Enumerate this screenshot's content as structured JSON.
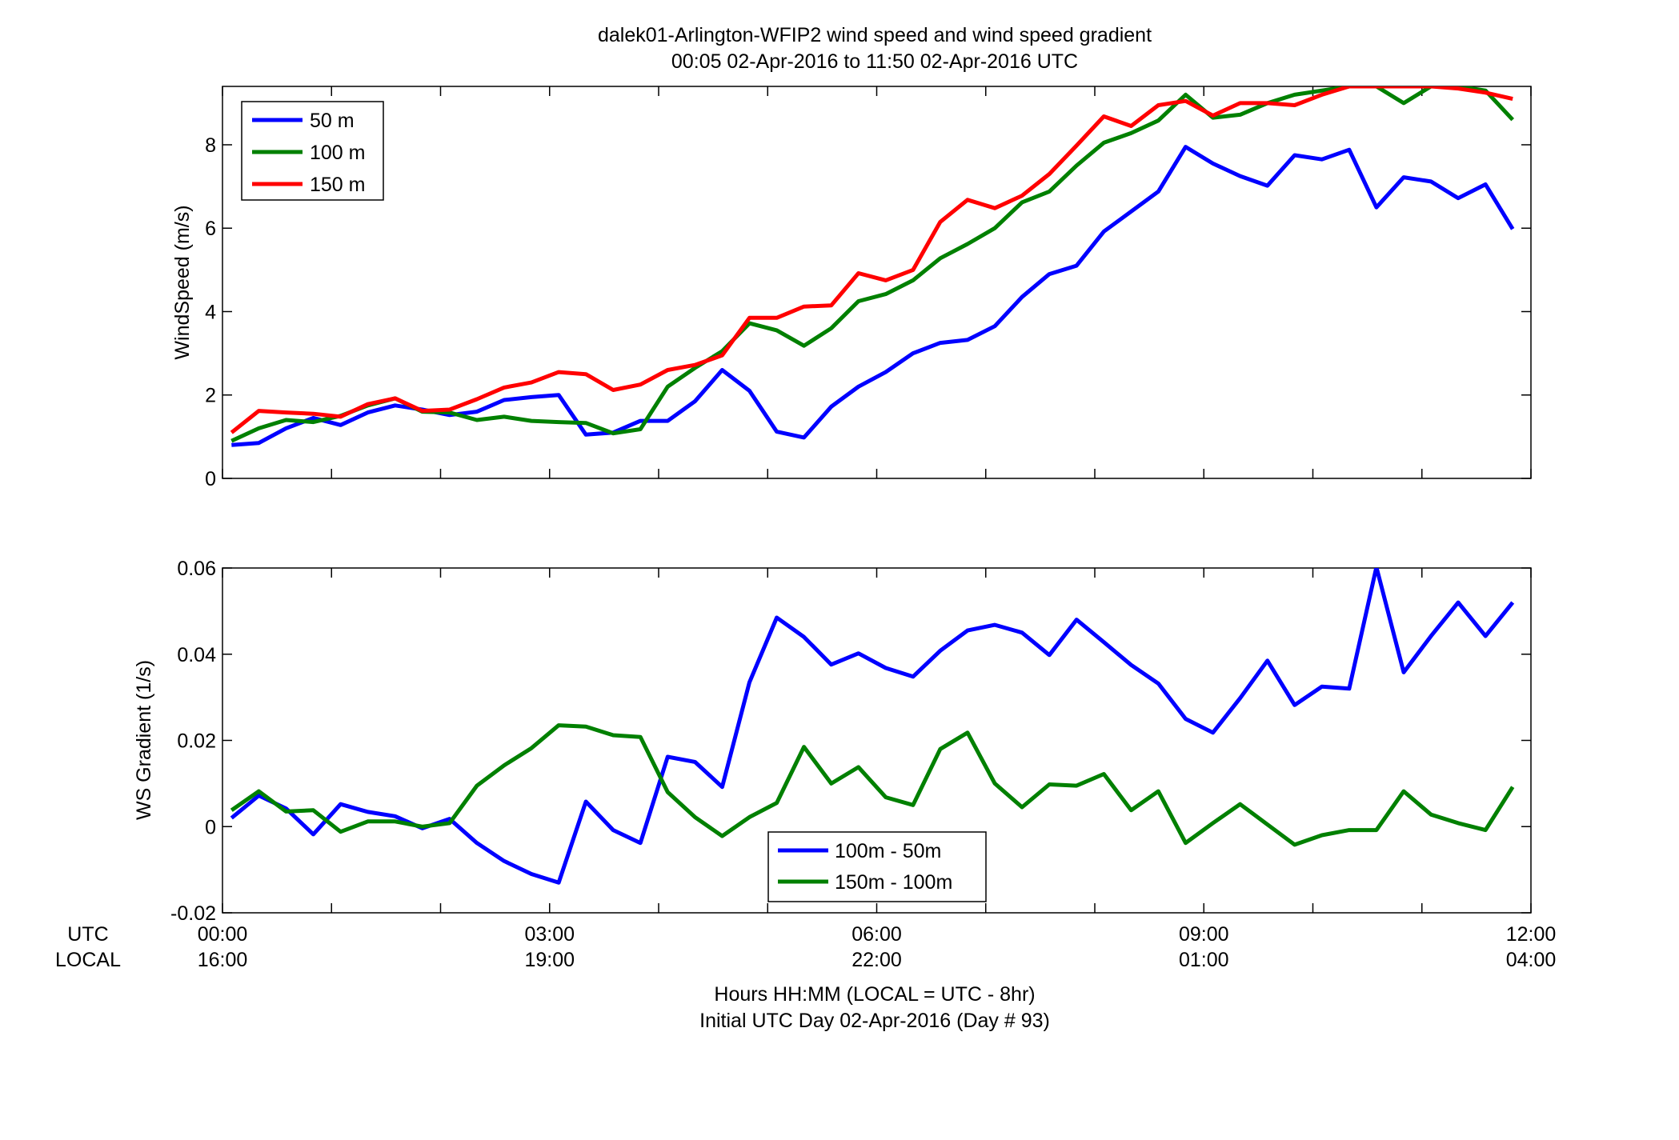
{
  "figure": {
    "title_line1": "dalek01-Arlington-WFIP2  wind speed and wind speed gradient",
    "title_line2": "00:05 02-Apr-2016 to 11:50 02-Apr-2016  UTC",
    "xlabel_line1": "Hours HH:MM  (LOCAL = UTC - 8hr)",
    "xlabel_line2": "Initial UTC Day 02-Apr-2016 (Day # 93)",
    "utc_label": "UTC",
    "local_label": "LOCAL",
    "utc_ticks": [
      "00:00",
      "03:00",
      "06:00",
      "09:00",
      "12:00"
    ],
    "local_ticks": [
      "16:00",
      "19:00",
      "22:00",
      "01:00",
      "04:00"
    ]
  },
  "chart_data": [
    {
      "type": "line",
      "ylabel": "WindSpeed (m/s)",
      "xlim": [
        0,
        12
      ],
      "ylim": [
        0,
        9.4
      ],
      "yticks": [
        0,
        2,
        4,
        6,
        8
      ],
      "x_tick_values": [
        0,
        3,
        6,
        9,
        12
      ],
      "grid": false,
      "legend_position": "top-left",
      "x": [
        0.083,
        0.333,
        0.583,
        0.833,
        1.083,
        1.333,
        1.583,
        1.833,
        2.083,
        2.333,
        2.583,
        2.833,
        3.083,
        3.333,
        3.583,
        3.833,
        4.083,
        4.333,
        4.583,
        4.833,
        5.083,
        5.333,
        5.583,
        5.833,
        6.083,
        6.333,
        6.583,
        6.833,
        7.083,
        7.333,
        7.583,
        7.833,
        8.083,
        8.333,
        8.583,
        8.833,
        9.083,
        9.333,
        9.583,
        9.833,
        10.083,
        10.333,
        10.583,
        10.833,
        11.083,
        11.333,
        11.583,
        11.833
      ],
      "series": [
        {
          "name": "50 m",
          "color": "#0000ff",
          "values": [
            0.8,
            0.85,
            1.2,
            1.45,
            1.28,
            1.58,
            1.75,
            1.65,
            1.52,
            1.6,
            1.88,
            1.95,
            2.0,
            1.05,
            1.1,
            1.38,
            1.38,
            1.85,
            2.6,
            2.1,
            1.12,
            0.98,
            1.72,
            2.2,
            2.55,
            3.0,
            3.25,
            3.32,
            3.65,
            4.35,
            4.9,
            5.1,
            5.92,
            6.4,
            6.88,
            7.95,
            7.55,
            7.25,
            7.02,
            7.75,
            7.65,
            7.88,
            6.5,
            7.22,
            7.12,
            6.72,
            7.05,
            5.98
          ]
        },
        {
          "name": "100 m",
          "color": "#008000",
          "values": [
            0.9,
            1.2,
            1.4,
            1.35,
            1.5,
            1.75,
            1.92,
            1.6,
            1.58,
            1.4,
            1.48,
            1.38,
            1.35,
            1.33,
            1.08,
            1.18,
            2.2,
            2.65,
            3.05,
            3.72,
            3.55,
            3.18,
            3.6,
            4.25,
            4.42,
            4.75,
            5.28,
            5.62,
            6.0,
            6.62,
            6.88,
            7.5,
            8.05,
            8.28,
            8.58,
            9.2,
            8.65,
            8.72,
            9.0,
            9.2,
            9.3,
            9.4,
            9.4,
            9.0,
            9.4,
            9.4,
            9.3,
            8.6
          ]
        },
        {
          "name": "150 m",
          "color": "#ff0000",
          "values": [
            1.1,
            1.62,
            1.58,
            1.55,
            1.48,
            1.78,
            1.92,
            1.62,
            1.65,
            1.9,
            2.18,
            2.3,
            2.55,
            2.5,
            2.12,
            2.25,
            2.6,
            2.72,
            2.95,
            3.85,
            3.85,
            4.12,
            4.15,
            4.92,
            4.75,
            5.0,
            6.15,
            6.68,
            6.48,
            6.78,
            7.3,
            7.98,
            8.68,
            8.45,
            8.95,
            9.05,
            8.7,
            9.0,
            9.0,
            8.95,
            9.2,
            9.4,
            9.4,
            9.4,
            9.4,
            9.35,
            9.25,
            9.1
          ]
        }
      ]
    },
    {
      "type": "line",
      "ylabel": "WS Gradient (1/s)",
      "xlim": [
        0,
        12
      ],
      "ylim": [
        -0.02,
        0.06
      ],
      "yticks": [
        -0.02,
        0,
        0.02,
        0.04,
        0.06
      ],
      "ytick_labels": [
        "-0.02",
        "0",
        "0.02",
        "0.04",
        "0.06"
      ],
      "x_tick_values": [
        0,
        3,
        6,
        9,
        12
      ],
      "grid": false,
      "legend_position": "bottom-center",
      "x": [
        0.083,
        0.333,
        0.583,
        0.833,
        1.083,
        1.333,
        1.583,
        1.833,
        2.083,
        2.333,
        2.583,
        2.833,
        3.083,
        3.333,
        3.583,
        3.833,
        4.083,
        4.333,
        4.583,
        4.833,
        5.083,
        5.333,
        5.583,
        5.833,
        6.083,
        6.333,
        6.583,
        6.833,
        7.083,
        7.333,
        7.583,
        7.833,
        8.083,
        8.333,
        8.583,
        8.833,
        9.083,
        9.333,
        9.583,
        9.833,
        10.083,
        10.333,
        10.583,
        10.833,
        11.083,
        11.333,
        11.583,
        11.833
      ],
      "series": [
        {
          "name": "100m - 50m",
          "color": "#0000ff",
          "values": [
            0.002,
            0.0072,
            0.0042,
            -0.0018,
            0.0052,
            0.0034,
            0.0024,
            -0.0004,
            0.0018,
            -0.0038,
            -0.008,
            -0.011,
            -0.013,
            0.0058,
            -0.0008,
            -0.0038,
            0.0162,
            0.015,
            0.0092,
            0.0335,
            0.0485,
            0.044,
            0.0376,
            0.0402,
            0.0368,
            0.0348,
            0.0408,
            0.0455,
            0.0468,
            0.045,
            0.0398,
            0.048,
            0.0428,
            0.0375,
            0.0332,
            0.025,
            0.0218,
            0.0298,
            0.0385,
            0.0282,
            0.0325,
            0.032,
            0.0602,
            0.0358,
            0.0442,
            0.052,
            0.0442,
            0.052
          ]
        },
        {
          "name": "150m - 100m",
          "color": "#008000",
          "values": [
            0.0038,
            0.0082,
            0.0035,
            0.0038,
            -0.0012,
            0.0012,
            0.0012,
            0.0,
            0.0008,
            0.0095,
            0.0142,
            0.0182,
            0.0235,
            0.0232,
            0.0212,
            0.0208,
            0.008,
            0.0022,
            -0.0022,
            0.0022,
            0.0055,
            0.0185,
            0.01,
            0.0138,
            0.0068,
            0.005,
            0.018,
            0.0218,
            0.01,
            0.0045,
            0.0098,
            0.0095,
            0.0122,
            0.0038,
            0.0082,
            -0.0038,
            0.0008,
            0.0052,
            0.0005,
            -0.0042,
            -0.002,
            -0.0008,
            -0.0008,
            0.0082,
            0.0028,
            0.0008,
            -0.0008,
            0.0092
          ]
        }
      ]
    }
  ]
}
